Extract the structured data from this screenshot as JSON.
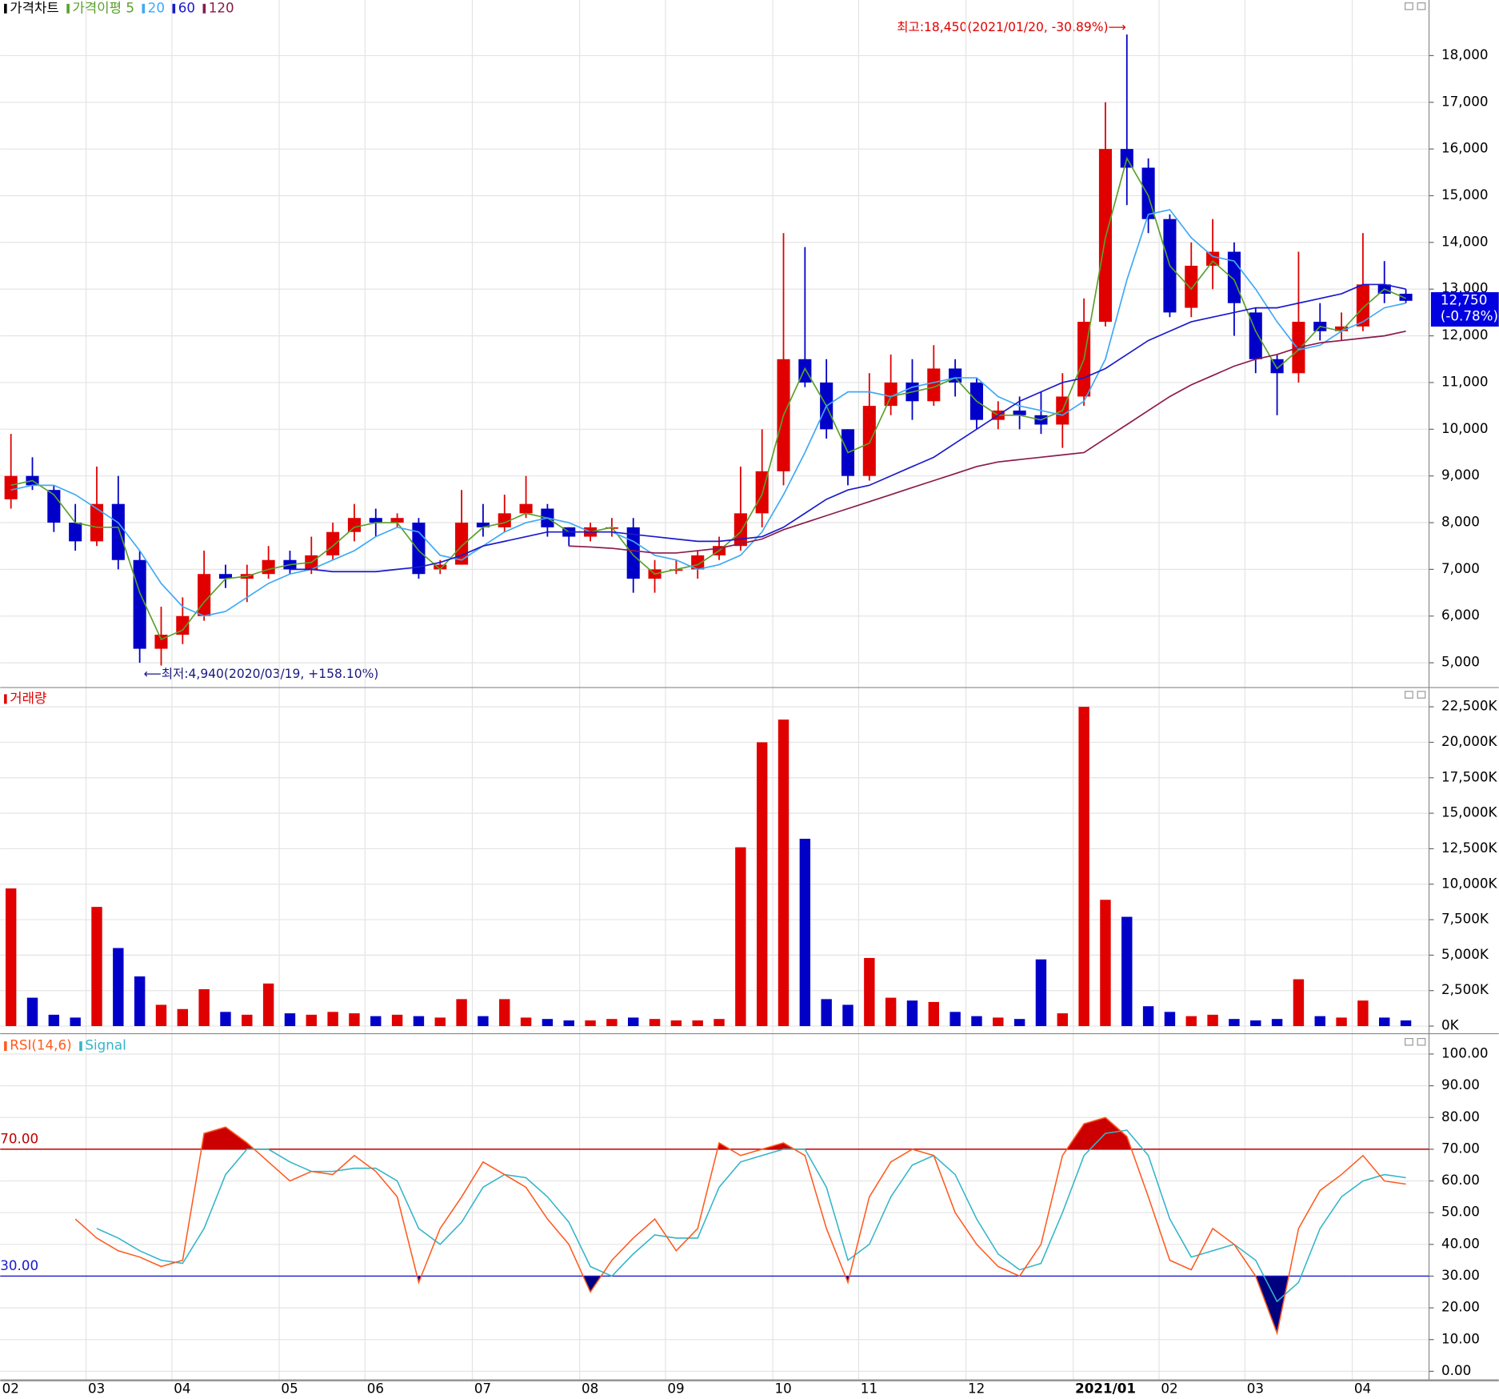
{
  "chart_data": [
    {
      "type": "candlestick",
      "title": "가격차트",
      "title_color": "#000000",
      "open": [
        8500,
        9000,
        8700,
        8000,
        7600,
        8400,
        7200,
        5300,
        5600,
        6000,
        6900,
        6800,
        6900,
        7200,
        7000,
        7300,
        7800,
        8100,
        8000,
        8000,
        7000,
        7100,
        8000,
        7900,
        8200,
        8300,
        7900,
        7700,
        7900,
        7900,
        6800,
        7000,
        7000,
        7300,
        7500,
        8200,
        9100,
        11500,
        11000,
        10000,
        9000,
        10500,
        11000,
        10600,
        11300,
        11000,
        10200,
        10400,
        10300,
        10100,
        10700,
        12300,
        16000,
        15600,
        14500,
        12600,
        13500,
        13800,
        12500,
        11500,
        11200,
        12300,
        12100,
        12200,
        13100,
        12900
      ],
      "high": [
        9900,
        9400,
        8800,
        8400,
        9200,
        9000,
        7400,
        6200,
        6400,
        7400,
        7100,
        7100,
        7500,
        7400,
        7700,
        8000,
        8400,
        8300,
        8200,
        8100,
        7200,
        8700,
        8400,
        8600,
        9000,
        8400,
        7900,
        8000,
        8100,
        8100,
        7200,
        7200,
        7400,
        7700,
        9200,
        10000,
        14200,
        13900,
        11500,
        10000,
        11200,
        11600,
        11500,
        11800,
        11500,
        11100,
        10600,
        10700,
        10800,
        11200,
        12800,
        17000,
        18450,
        15800,
        14600,
        14000,
        14500,
        14000,
        12600,
        11600,
        13800,
        12700,
        12500,
        14200,
        13600,
        13000
      ],
      "low": [
        8300,
        8700,
        7800,
        7400,
        7500,
        7000,
        5000,
        4940,
        5400,
        5900,
        6600,
        6300,
        6800,
        6900,
        6900,
        7200,
        7600,
        7700,
        7900,
        6800,
        6900,
        7100,
        7700,
        7800,
        8100,
        7700,
        7500,
        7600,
        7700,
        6500,
        6500,
        6900,
        6800,
        7200,
        7400,
        7900,
        8800,
        10900,
        9800,
        8800,
        8900,
        10300,
        10200,
        10500,
        10700,
        10000,
        10000,
        10000,
        9900,
        9600,
        10500,
        12200,
        14800,
        14200,
        12400,
        12400,
        13000,
        12000,
        11200,
        10300,
        11000,
        11900,
        11900,
        12100,
        12700,
        12700
      ],
      "close": [
        9000,
        8800,
        8000,
        7600,
        8400,
        7200,
        5300,
        5600,
        6000,
        6900,
        6800,
        6900,
        7200,
        7000,
        7300,
        7800,
        8100,
        8000,
        8100,
        6900,
        7100,
        8000,
        7900,
        8200,
        8400,
        7900,
        7700,
        7900,
        7900,
        6800,
        7000,
        7000,
        7300,
        7500,
        8200,
        9100,
        11500,
        11000,
        10000,
        9000,
        10500,
        11000,
        10600,
        11300,
        11000,
        10200,
        10400,
        10300,
        10100,
        10700,
        12300,
        16000,
        15600,
        14500,
        12500,
        13500,
        13800,
        12700,
        11500,
        11200,
        12300,
        12100,
        12200,
        13100,
        12900,
        12750
      ],
      "up_color": "#e00000",
      "down_color": "#0000c8",
      "series": [
        {
          "name": "가격이평 5",
          "color": "#5aa02c",
          "values": [
            8800,
            8900,
            8600,
            8000,
            7900,
            7900,
            6500,
            5500,
            5700,
            6300,
            6800,
            6850,
            7000,
            7100,
            7150,
            7500,
            7900,
            8000,
            8000,
            7400,
            7000,
            7500,
            7900,
            8000,
            8200,
            8100,
            7800,
            7800,
            7900,
            7300,
            6900,
            7000,
            7100,
            7400,
            7800,
            8600,
            10300,
            11300,
            10500,
            9500,
            9700,
            10700,
            10800,
            10900,
            11100,
            10600,
            10300,
            10300,
            10200,
            10400,
            11500,
            14100,
            15800,
            15000,
            13500,
            13000,
            13600,
            13200,
            12100,
            11300,
            11700,
            12200,
            12100,
            12600,
            13000,
            12800
          ]
        },
        {
          "name": "20",
          "color": "#3fa9f5",
          "values": [
            8700,
            8800,
            8800,
            8600,
            8300,
            8000,
            7400,
            6700,
            6200,
            6000,
            6100,
            6400,
            6700,
            6900,
            7000,
            7200,
            7400,
            7700,
            7900,
            7800,
            7300,
            7200,
            7500,
            7800,
            8000,
            8100,
            8000,
            7800,
            7800,
            7600,
            7300,
            7200,
            7000,
            7100,
            7300,
            7800,
            8600,
            9500,
            10500,
            10800,
            10800,
            10700,
            10900,
            11000,
            11100,
            11100,
            10700,
            10500,
            10400,
            10300,
            10600,
            11500,
            13200,
            14600,
            14700,
            14100,
            13700,
            13600,
            13000,
            12300,
            11700,
            11800,
            12100,
            12300,
            12600,
            12700
          ]
        },
        {
          "name": "60",
          "color": "#1a1acc",
          "values": [
            null,
            null,
            null,
            null,
            null,
            null,
            null,
            null,
            null,
            null,
            null,
            null,
            null,
            7000,
            7000,
            6950,
            6950,
            6950,
            7000,
            7050,
            7150,
            7300,
            7500,
            7600,
            7700,
            7800,
            7800,
            7800,
            7800,
            7750,
            7700,
            7650,
            7600,
            7600,
            7650,
            7700,
            7900,
            8200,
            8500,
            8700,
            8800,
            9000,
            9200,
            9400,
            9700,
            10000,
            10300,
            10600,
            10800,
            11000,
            11100,
            11300,
            11600,
            11900,
            12100,
            12300,
            12400,
            12500,
            12600,
            12600,
            12700,
            12800,
            12900,
            13100,
            13100,
            13000
          ]
        },
        {
          "name": "120",
          "color": "#8b1a4a",
          "values": [
            null,
            null,
            null,
            null,
            null,
            null,
            null,
            null,
            null,
            null,
            null,
            null,
            null,
            null,
            null,
            null,
            null,
            null,
            null,
            null,
            null,
            null,
            null,
            null,
            null,
            null,
            7500,
            7480,
            7450,
            7400,
            7350,
            7350,
            7400,
            7450,
            7550,
            7650,
            7850,
            8000,
            8150,
            8300,
            8450,
            8600,
            8750,
            8900,
            9050,
            9200,
            9300,
            9350,
            9400,
            9450,
            9500,
            9800,
            10100,
            10400,
            10700,
            10950,
            11150,
            11350,
            11500,
            11600,
            11750,
            11850,
            11900,
            11950,
            12000,
            12100
          ]
        }
      ],
      "ylim": [
        4490,
        19190
      ],
      "yticks": [
        {
          "value": 5000,
          "label": "5,000"
        },
        {
          "value": 6000,
          "label": "6,000"
        },
        {
          "value": 7000,
          "label": "7,000"
        },
        {
          "value": 8000,
          "label": "8,000"
        },
        {
          "value": 9000,
          "label": "9,000"
        },
        {
          "value": 10000,
          "label": "10,000"
        },
        {
          "value": 11000,
          "label": "11,000"
        },
        {
          "value": 12000,
          "label": "12,000"
        },
        {
          "value": 13000,
          "label": "13,000"
        },
        {
          "value": 14000,
          "label": "14,000"
        },
        {
          "value": 15000,
          "label": "15,000"
        },
        {
          "value": 16000,
          "label": "16,000"
        },
        {
          "value": 17000,
          "label": "17,000"
        },
        {
          "value": 18000,
          "label": "18,000"
        }
      ],
      "grid": true,
      "annotations": [
        {
          "text": "최고:18,450(2021/01/20, -30.89%)⟶",
          "color": "#e00000"
        },
        {
          "text": "⟵최저:4,940(2020/03/19, +158.10%)",
          "color": "#1a1a80"
        }
      ],
      "current_price": {
        "value": 12750,
        "label": "12,750",
        "change": "(-0.78%)",
        "color": "#0000e0"
      }
    },
    {
      "type": "bar",
      "title": "거래량",
      "title_color": "#e00000",
      "values": [
        9700,
        2000,
        800,
        600,
        8400,
        5500,
        3500,
        1500,
        1200,
        2600,
        1000,
        800,
        3000,
        900,
        800,
        1000,
        900,
        700,
        800,
        700,
        600,
        1900,
        700,
        1900,
        600,
        500,
        400,
        400,
        500,
        600,
        500,
        400,
        400,
        500,
        12600,
        20000,
        21600,
        13200,
        1900,
        1500,
        4800,
        2000,
        1800,
        1700,
        1000,
        700,
        600,
        500,
        4700,
        900,
        22500,
        8900,
        7700,
        1400,
        1000,
        700,
        800,
        500,
        400,
        500,
        3300,
        700,
        600,
        1800,
        600,
        400
      ],
      "ylim": [
        -470,
        23790
      ],
      "yticks": [
        {
          "value": 0,
          "label": "0K"
        },
        {
          "value": 2500,
          "label": "2,500K"
        },
        {
          "value": 5000,
          "label": "5,000K"
        },
        {
          "value": 7500,
          "label": "7,500K"
        },
        {
          "value": 10000,
          "label": "10,000K"
        },
        {
          "value": 12500,
          "label": "12,500K"
        },
        {
          "value": 15000,
          "label": "15,000K"
        },
        {
          "value": 17500,
          "label": "17,500K"
        },
        {
          "value": 20000,
          "label": "20,000K"
        },
        {
          "value": 22500,
          "label": "22,500K"
        }
      ],
      "grid": true
    },
    {
      "type": "line",
      "categories": [
        "02",
        null,
        null,
        null,
        "03",
        null,
        null,
        null,
        "04",
        null,
        null,
        null,
        null,
        "05",
        null,
        null,
        null,
        "06",
        null,
        null,
        null,
        null,
        "07",
        null,
        null,
        null,
        null,
        "08",
        null,
        null,
        null,
        "09",
        null,
        null,
        null,
        null,
        "10",
        null,
        null,
        null,
        "11",
        null,
        null,
        null,
        null,
        "12",
        null,
        null,
        null,
        null,
        "2021/01",
        null,
        null,
        null,
        "02",
        null,
        null,
        null,
        "03",
        null,
        null,
        null,
        null,
        "04",
        null,
        null
      ],
      "series": [
        {
          "name": "RSI(14,6)",
          "color": "#ff5a1f",
          "values": [
            null,
            null,
            null,
            48,
            42,
            38,
            36,
            33,
            35,
            75,
            77,
            72,
            66,
            60,
            63,
            62,
            68,
            63,
            55,
            28,
            45,
            55,
            66,
            62,
            58,
            48,
            40,
            25,
            35,
            42,
            48,
            38,
            45,
            72,
            68,
            70,
            72,
            68,
            45,
            28,
            55,
            66,
            70,
            68,
            50,
            40,
            33,
            30,
            40,
            68,
            78,
            80,
            74,
            55,
            35,
            32,
            45,
            40,
            30,
            12,
            45,
            57,
            62,
            68,
            60,
            59
          ]
        },
        {
          "name": "Signal",
          "color": "#33b5c8",
          "values": [
            null,
            null,
            null,
            null,
            45,
            42,
            38,
            35,
            34,
            45,
            62,
            70,
            70,
            66,
            63,
            63,
            64,
            64,
            60,
            45,
            40,
            47,
            58,
            62,
            61,
            55,
            47,
            33,
            30,
            37,
            43,
            42,
            42,
            58,
            66,
            68,
            70,
            70,
            58,
            35,
            40,
            55,
            65,
            68,
            62,
            48,
            37,
            32,
            34,
            50,
            68,
            75,
            76,
            68,
            48,
            36,
            38,
            40,
            35,
            22,
            28,
            45,
            55,
            60,
            62,
            61
          ]
        }
      ],
      "ylim": [
        -2.7,
        105.8
      ],
      "yticks": [
        {
          "value": 0,
          "label": "0.00"
        },
        {
          "value": 10,
          "label": "10.00"
        },
        {
          "value": 20,
          "label": "20.00"
        },
        {
          "value": 30,
          "label": "30.00"
        },
        {
          "value": 40,
          "label": "40.00"
        },
        {
          "value": 50,
          "label": "50.00"
        },
        {
          "value": 60,
          "label": "60.00"
        },
        {
          "value": 70,
          "label": "70.00"
        },
        {
          "value": 80,
          "label": "80.00"
        },
        {
          "value": 90,
          "label": "90.00"
        },
        {
          "value": 100,
          "label": "100.00"
        }
      ],
      "reference_lines": [
        {
          "value": 70,
          "label": "70.00",
          "color": "#c00000"
        },
        {
          "value": 30,
          "label": "30.00",
          "color": "#1a1acc"
        }
      ],
      "overbought_fill": "#cc0000",
      "oversold_fill": "#00007f",
      "grid": true
    }
  ]
}
